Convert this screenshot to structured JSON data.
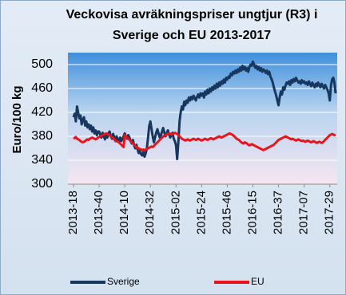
{
  "chart_data": {
    "type": "line",
    "title": "Veckovisa avräkningspriser ungtjur (R3) i Sverige och EU 2013-2017",
    "y_label": "Euro/100 kg",
    "ylim": [
      300,
      520
    ],
    "yticks": [
      300,
      340,
      380,
      420,
      460,
      500
    ],
    "grid": true,
    "legend": "bottom",
    "categories": [
      "2013-18",
      null,
      null,
      null,
      null,
      null,
      null,
      null,
      null,
      null,
      null,
      null,
      null,
      null,
      null,
      null,
      null,
      null,
      null,
      null,
      null,
      null,
      "2013-40",
      null,
      null,
      null,
      null,
      null,
      null,
      null,
      null,
      null,
      null,
      null,
      null,
      null,
      null,
      null,
      null,
      null,
      null,
      null,
      null,
      null,
      "2014-10",
      null,
      null,
      null,
      null,
      null,
      null,
      null,
      null,
      null,
      null,
      null,
      null,
      null,
      null,
      null,
      null,
      null,
      null,
      null,
      null,
      null,
      "2014-32",
      null,
      null,
      null,
      null,
      null,
      null,
      null,
      null,
      null,
      null,
      null,
      null,
      null,
      null,
      null,
      null,
      null,
      null,
      null,
      null,
      null,
      "2015-02",
      null,
      null,
      null,
      null,
      null,
      null,
      null,
      null,
      null,
      null,
      null,
      null,
      null,
      null,
      null,
      null,
      null,
      null,
      null,
      null,
      null,
      "2015-24",
      null,
      null,
      null,
      null,
      null,
      null,
      null,
      null,
      null,
      null,
      null,
      null,
      null,
      null,
      null,
      null,
      null,
      null,
      null,
      null,
      null,
      "2015-46",
      null,
      null,
      null,
      null,
      null,
      null,
      null,
      null,
      null,
      null,
      null,
      null,
      null,
      null,
      null,
      null,
      null,
      null,
      null,
      null,
      null,
      "2016-15",
      null,
      null,
      null,
      null,
      null,
      null,
      null,
      null,
      null,
      null,
      null,
      null,
      null,
      null,
      null,
      null,
      null,
      null,
      null,
      null,
      null,
      "2016-37",
      null,
      null,
      null,
      null,
      null,
      null,
      null,
      null,
      null,
      null,
      null,
      null,
      null,
      null,
      null,
      null,
      null,
      null,
      null,
      null,
      null,
      "2017-07",
      null,
      null,
      null,
      null,
      null,
      null,
      null,
      null,
      null,
      null,
      null,
      null,
      null,
      null,
      null,
      null,
      null,
      null,
      null,
      null,
      null,
      "2017-29",
      null,
      null,
      null,
      null,
      null
    ],
    "series": [
      {
        "name": "Sverige",
        "color": "#17375e",
        "values": [
          412,
          418,
          405,
          430,
          420,
          410,
          415,
          400,
          408,
          412,
          398,
          405,
          395,
          400,
          392,
          398,
          388,
          395,
          385,
          390,
          382,
          388,
          388,
          383,
          378,
          386,
          380,
          375,
          382,
          378,
          385,
          388,
          380,
          376,
          384,
          378,
          372,
          380,
          375,
          370,
          378,
          372,
          376,
          380,
          385,
          380,
          376,
          382,
          378,
          372,
          368,
          374,
          365,
          360,
          366,
          358,
          352,
          356,
          350,
          348,
          354,
          346,
          352,
          360,
          378,
          398,
          405,
          392,
          380,
          370,
          378,
          386,
          392,
          385,
          378,
          382,
          388,
          394,
          386,
          380,
          385,
          390,
          384,
          378,
          382,
          386,
          376,
          372,
          365,
          342,
          370,
          405,
          420,
          430,
          425,
          438,
          432,
          440,
          436,
          445,
          440,
          446,
          442,
          448,
          444,
          440,
          446,
          450,
          445,
          452,
          448,
          452,
          445,
          455,
          450,
          458,
          452,
          460,
          455,
          462,
          458,
          465,
          460,
          468,
          462,
          470,
          465,
          472,
          468,
          475,
          470,
          478,
          475,
          480,
          478,
          485,
          482,
          488,
          485,
          490,
          486,
          492,
          488,
          495,
          490,
          498,
          492,
          496,
          490,
          494,
          488,
          496,
          500,
          498,
          505,
          500,
          495,
          498,
          492,
          496,
          490,
          494,
          488,
          492,
          490,
          486,
          490,
          484,
          488,
          480,
          476,
          470,
          462,
          455,
          448,
          440,
          432,
          445,
          455,
          450,
          462,
          458,
          465,
          470,
          468,
          472,
          466,
          474,
          470,
          476,
          472,
          478,
          474,
          470,
          472,
          468,
          474,
          470,
          472,
          468,
          470,
          466,
          472,
          468,
          464,
          470,
          466,
          462,
          468,
          464,
          470,
          466,
          462,
          468,
          464,
          460,
          466,
          462,
          458,
          452,
          440,
          465,
          475,
          478,
          470,
          452
        ]
      },
      {
        "name": "EU",
        "color": "#e8141b",
        "values": [
          378,
          377,
          379,
          376,
          375,
          374,
          372,
          371,
          370,
          371,
          372,
          374,
          375,
          374,
          376,
          377,
          378,
          377,
          376,
          375,
          376,
          378,
          379,
          380,
          381,
          382,
          383,
          384,
          385,
          384,
          383,
          382,
          380,
          378,
          377,
          375,
          373,
          372,
          371,
          370,
          368,
          366,
          364,
          362,
          382,
          380,
          378,
          376,
          374,
          372,
          370,
          368,
          366,
          364,
          362,
          361,
          360,
          359,
          358,
          357,
          358,
          357,
          358,
          359,
          360,
          361,
          362,
          363,
          362,
          364,
          366,
          368,
          370,
          372,
          374,
          376,
          378,
          380,
          381,
          382,
          383,
          384,
          385,
          384,
          383,
          384,
          385,
          386,
          385,
          384,
          382,
          380,
          378,
          376,
          375,
          374,
          373,
          374,
          375,
          374,
          373,
          374,
          375,
          376,
          375,
          374,
          375,
          376,
          375,
          374,
          373,
          374,
          375,
          376,
          375,
          374,
          375,
          376,
          377,
          376,
          375,
          376,
          377,
          378,
          379,
          380,
          379,
          378,
          379,
          380,
          381,
          382,
          383,
          384,
          385,
          384,
          383,
          382,
          380,
          378,
          376,
          375,
          374,
          372,
          370,
          369,
          368,
          370,
          369,
          368,
          366,
          365,
          366,
          367,
          366,
          365,
          364,
          363,
          362,
          361,
          360,
          359,
          358,
          357,
          358,
          359,
          360,
          361,
          362,
          363,
          364,
          365,
          366,
          368,
          370,
          372,
          374,
          375,
          376,
          377,
          378,
          379,
          380,
          379,
          378,
          377,
          376,
          375,
          376,
          375,
          374,
          373,
          374,
          375,
          374,
          373,
          372,
          373,
          372,
          371,
          372,
          373,
          372,
          371,
          370,
          371,
          372,
          371,
          370,
          369,
          370,
          371,
          370,
          369,
          370,
          372,
          374,
          376,
          378,
          380,
          382,
          383,
          384,
          383,
          382,
          383
        ]
      }
    ]
  }
}
